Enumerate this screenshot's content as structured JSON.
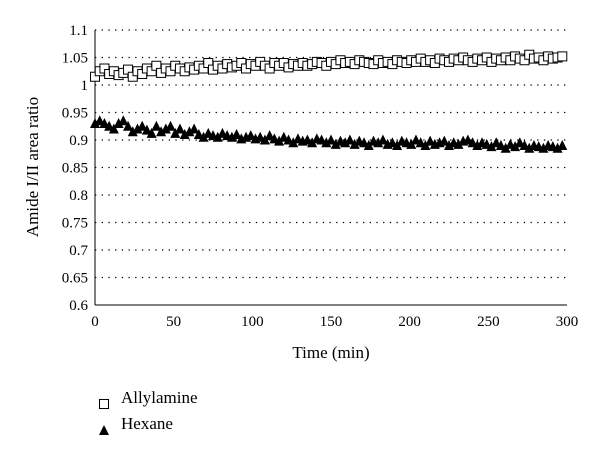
{
  "chart_data": {
    "type": "scatter",
    "title": "",
    "xlabel": "Time (min)",
    "ylabel": "Amide I/II area ratio",
    "xlim": [
      0,
      300
    ],
    "ylim": [
      0.6,
      1.1
    ],
    "xticks": [
      0,
      50,
      100,
      150,
      200,
      250,
      300
    ],
    "yticks": [
      0.6,
      0.65,
      0.7,
      0.75,
      0.8,
      0.85,
      0.9,
      0.95,
      1,
      1.05,
      1.1
    ],
    "grid": "horizontal dotted",
    "legend_position": "bottom-left",
    "series": [
      {
        "name": "Allylamine",
        "marker": "open-square",
        "x": [
          0,
          3,
          6,
          9,
          12,
          15,
          18,
          21,
          24,
          27,
          30,
          33,
          36,
          39,
          42,
          45,
          48,
          51,
          54,
          57,
          60,
          63,
          66,
          69,
          72,
          75,
          78,
          81,
          84,
          87,
          90,
          93,
          96,
          99,
          102,
          105,
          108,
          111,
          114,
          117,
          120,
          123,
          126,
          129,
          132,
          135,
          138,
          141,
          144,
          147,
          150,
          153,
          156,
          159,
          162,
          165,
          168,
          171,
          174,
          177,
          180,
          183,
          186,
          189,
          192,
          195,
          198,
          201,
          204,
          207,
          210,
          213,
          216,
          219,
          222,
          225,
          228,
          231,
          234,
          237,
          240,
          243,
          246,
          249,
          252,
          255,
          258,
          261,
          264,
          267,
          270,
          273,
          276,
          279,
          282,
          285,
          288,
          291,
          294,
          297
        ],
        "y": [
          1.015,
          1.025,
          1.03,
          1.02,
          1.025,
          1.018,
          1.022,
          1.028,
          1.015,
          1.025,
          1.02,
          1.03,
          1.025,
          1.035,
          1.022,
          1.03,
          1.025,
          1.035,
          1.03,
          1.025,
          1.032,
          1.028,
          1.035,
          1.03,
          1.04,
          1.028,
          1.035,
          1.03,
          1.038,
          1.032,
          1.035,
          1.04,
          1.03,
          1.038,
          1.035,
          1.042,
          1.035,
          1.03,
          1.04,
          1.035,
          1.04,
          1.032,
          1.038,
          1.035,
          1.04,
          1.035,
          1.038,
          1.042,
          1.04,
          1.035,
          1.042,
          1.038,
          1.045,
          1.04,
          1.042,
          1.038,
          1.045,
          1.042,
          1.04,
          1.038,
          1.045,
          1.04,
          1.042,
          1.038,
          1.045,
          1.042,
          1.04,
          1.045,
          1.042,
          1.048,
          1.042,
          1.045,
          1.04,
          1.048,
          1.045,
          1.042,
          1.048,
          1.045,
          1.05,
          1.045,
          1.042,
          1.048,
          1.045,
          1.05,
          1.042,
          1.048,
          1.045,
          1.05,
          1.045,
          1.052,
          1.048,
          1.045,
          1.055,
          1.048,
          1.05,
          1.045,
          1.052,
          1.048,
          1.05,
          1.052
        ]
      },
      {
        "name": "Hexane",
        "marker": "filled-triangle",
        "x": [
          0,
          3,
          6,
          9,
          12,
          15,
          18,
          21,
          24,
          27,
          30,
          33,
          36,
          39,
          42,
          45,
          48,
          51,
          54,
          57,
          60,
          63,
          66,
          69,
          72,
          75,
          78,
          81,
          84,
          87,
          90,
          93,
          96,
          99,
          102,
          105,
          108,
          111,
          114,
          117,
          120,
          123,
          126,
          129,
          132,
          135,
          138,
          141,
          144,
          147,
          150,
          153,
          156,
          159,
          162,
          165,
          168,
          171,
          174,
          177,
          180,
          183,
          186,
          189,
          192,
          195,
          198,
          201,
          204,
          207,
          210,
          213,
          216,
          219,
          222,
          225,
          228,
          231,
          234,
          237,
          240,
          243,
          246,
          249,
          252,
          255,
          258,
          261,
          264,
          267,
          270,
          273,
          276,
          279,
          282,
          285,
          288,
          291,
          294,
          297
        ],
        "y": [
          0.93,
          0.935,
          0.93,
          0.925,
          0.92,
          0.93,
          0.935,
          0.925,
          0.915,
          0.92,
          0.925,
          0.918,
          0.912,
          0.925,
          0.915,
          0.92,
          0.925,
          0.912,
          0.92,
          0.91,
          0.915,
          0.92,
          0.91,
          0.905,
          0.912,
          0.908,
          0.905,
          0.912,
          0.908,
          0.905,
          0.91,
          0.902,
          0.905,
          0.908,
          0.902,
          0.905,
          0.9,
          0.908,
          0.902,
          0.898,
          0.905,
          0.9,
          0.895,
          0.902,
          0.898,
          0.9,
          0.895,
          0.902,
          0.9,
          0.895,
          0.9,
          0.892,
          0.898,
          0.895,
          0.9,
          0.892,
          0.898,
          0.895,
          0.89,
          0.898,
          0.895,
          0.9,
          0.892,
          0.895,
          0.89,
          0.898,
          0.895,
          0.892,
          0.9,
          0.895,
          0.89,
          0.898,
          0.892,
          0.895,
          0.898,
          0.89,
          0.895,
          0.892,
          0.898,
          0.9,
          0.895,
          0.89,
          0.895,
          0.892,
          0.888,
          0.895,
          0.89,
          0.885,
          0.892,
          0.888,
          0.895,
          0.89,
          0.885,
          0.89,
          0.888,
          0.885,
          0.89,
          0.888,
          0.885,
          0.89
        ]
      }
    ],
    "legend": [
      {
        "label": "Allylamine",
        "marker": "open-square"
      },
      {
        "label": "Hexane",
        "marker": "filled-triangle"
      }
    ]
  }
}
